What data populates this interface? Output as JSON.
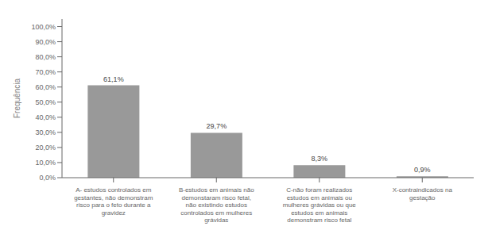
{
  "chart_data": {
    "type": "bar",
    "categories": [
      "A- estudos controlados em\ngestantes, não demonstram\nrisco para o feto durante a\ngravidez",
      "B-estudos em animais não\ndemonstaram risco fetal,\nnão existindo estudos\ncontrolados em mulheres\ngrávidas",
      "C-não foram realizados\nestudos em animais ou\nmulheres grávidas ou que\nestudos em animais\ndemonstram risco fetal",
      "X-contraindicados na\ngestação"
    ],
    "values": [
      61.1,
      29.7,
      8.3,
      0.9
    ],
    "value_labels": [
      "61,1%",
      "29,7%",
      "8,3%",
      "0,9%"
    ],
    "color": "#999999",
    "ylabel": "Frequência",
    "ylim": [
      0,
      105
    ],
    "yticks": [
      {
        "value": 0,
        "label": "0,0%"
      },
      {
        "value": 10,
        "label": "10,0%"
      },
      {
        "value": 20,
        "label": "20,0%"
      },
      {
        "value": 30,
        "label": "30,0%"
      },
      {
        "value": 40,
        "label": "40,0%"
      },
      {
        "value": 50,
        "label": "50,0%"
      },
      {
        "value": 60,
        "label": "60,0%"
      },
      {
        "value": 70,
        "label": "70,0%"
      },
      {
        "value": 80,
        "label": "80,0%"
      },
      {
        "value": 90,
        "label": "90,0%"
      },
      {
        "value": 100,
        "label": "100,0%"
      }
    ],
    "grid": false,
    "data_labels": true
  }
}
